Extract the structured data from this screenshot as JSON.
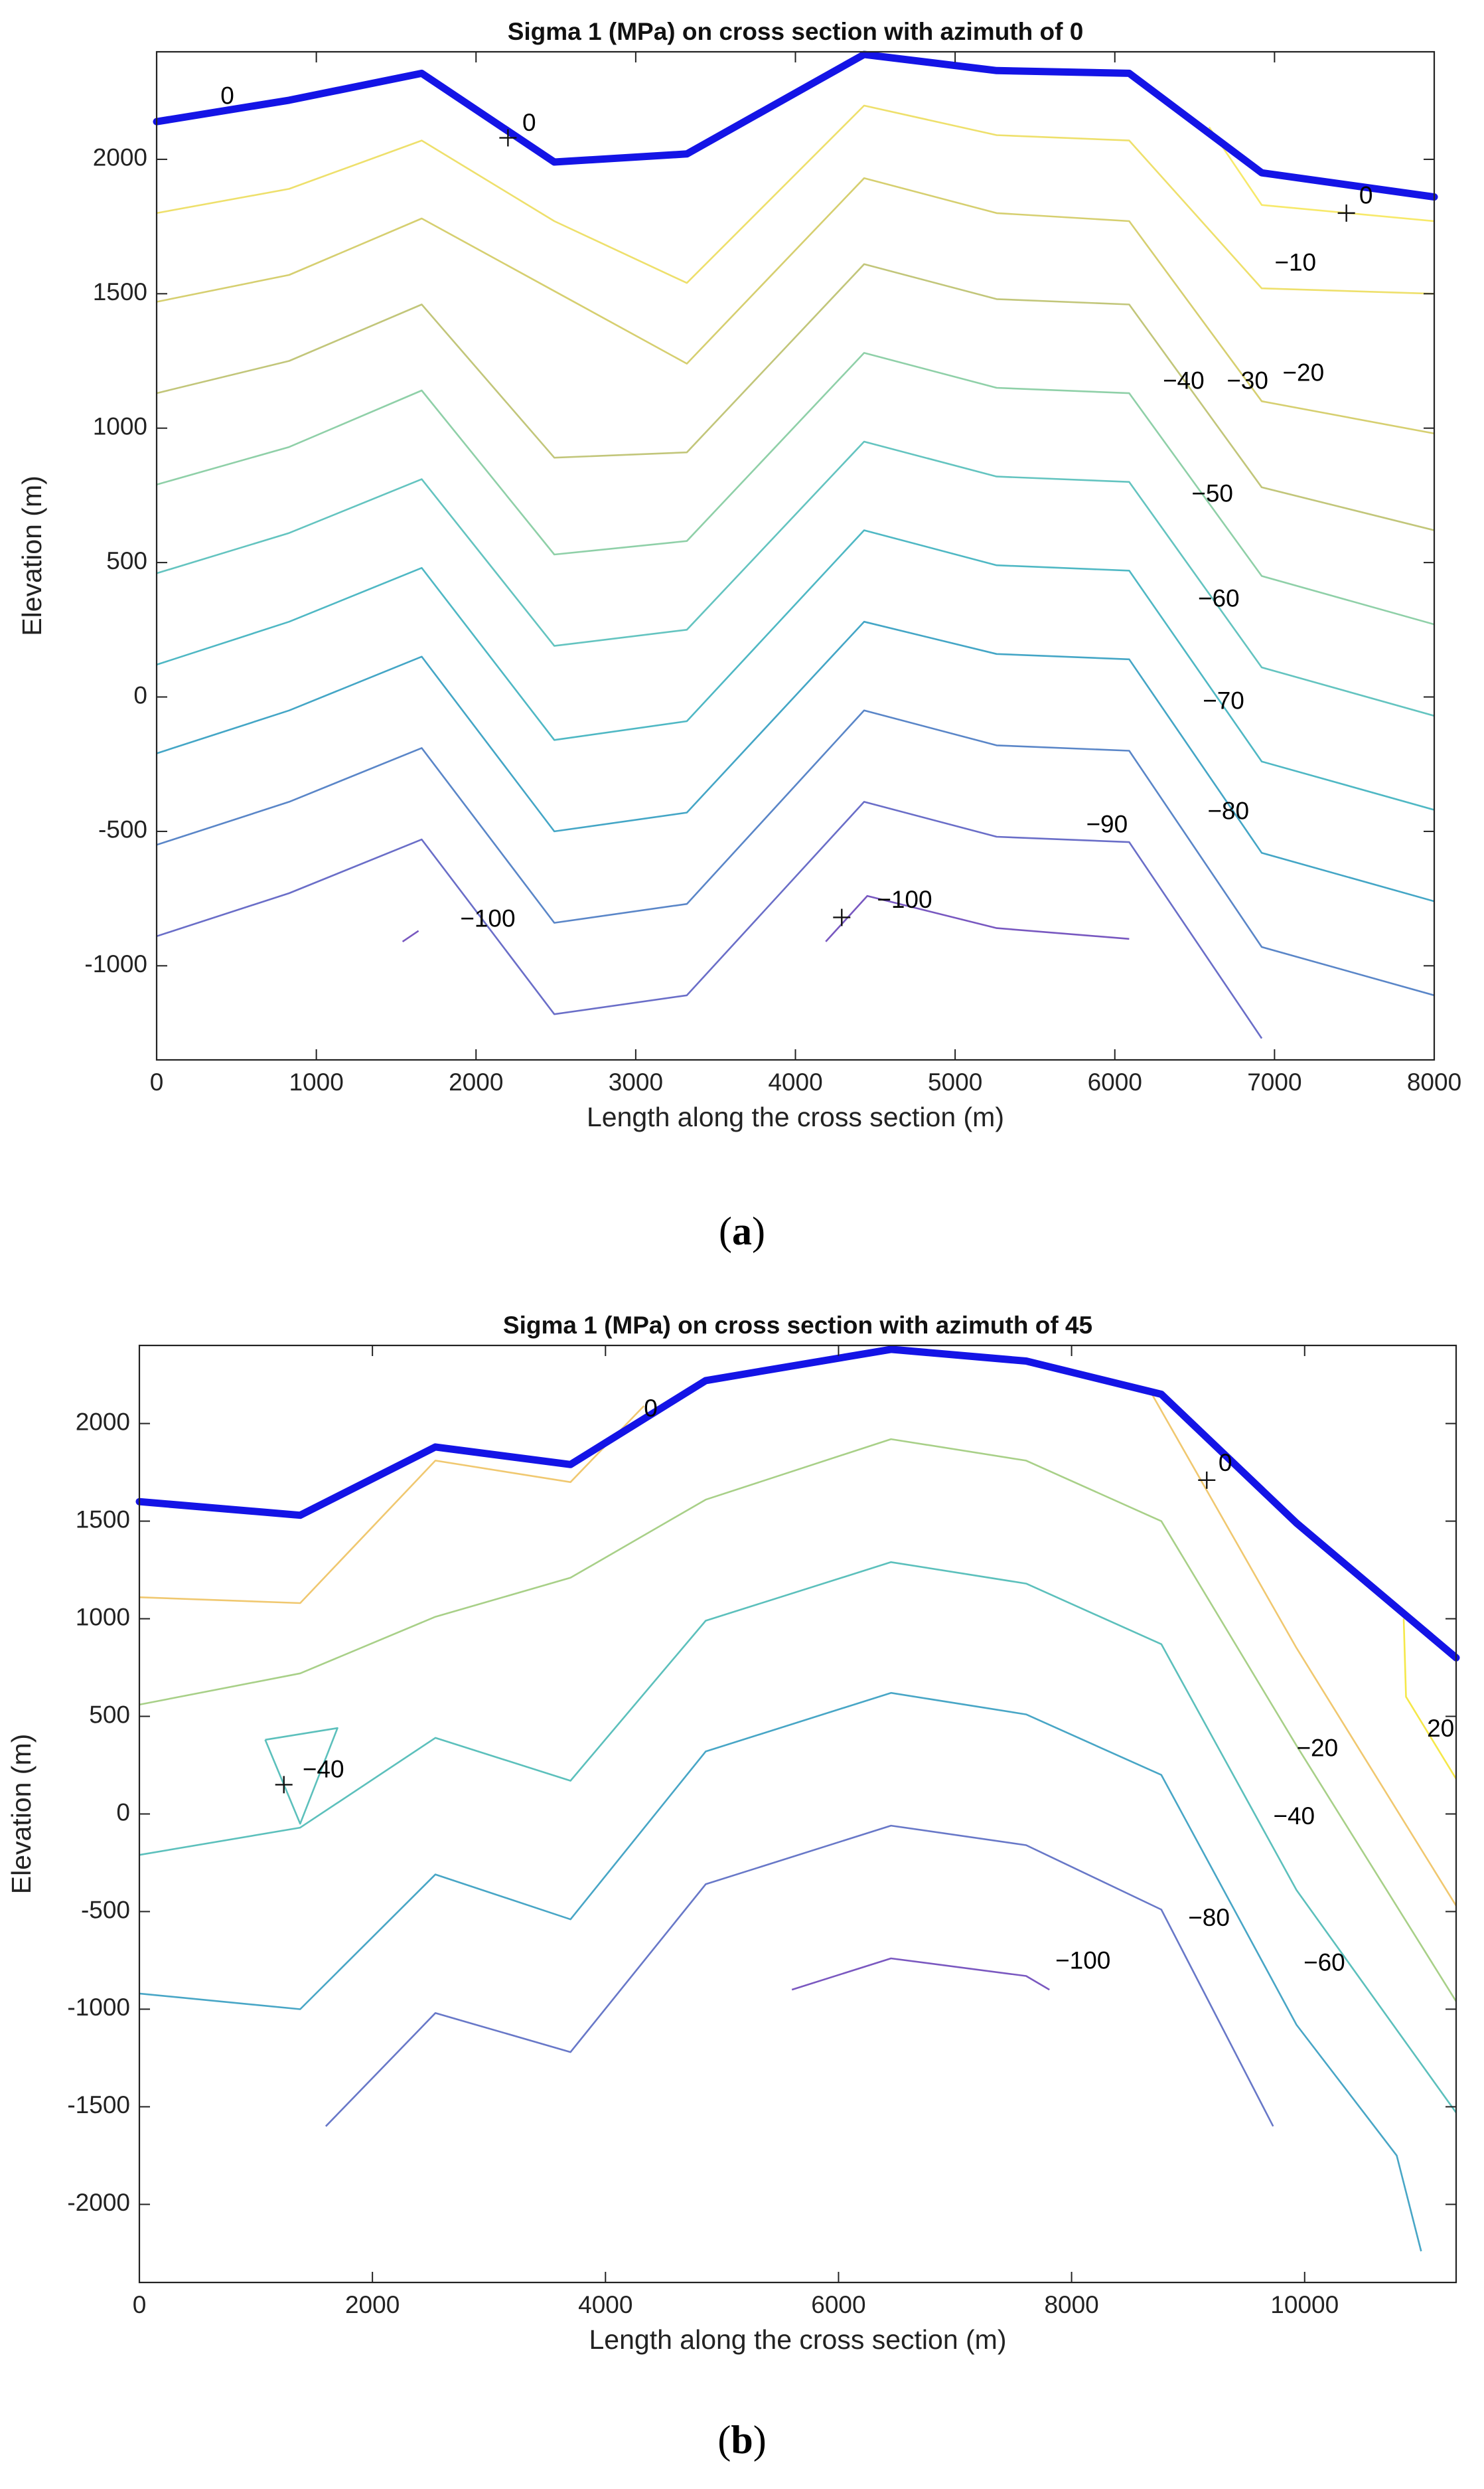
{
  "chart_data": [
    {
      "type": "contour",
      "panel_label": "a",
      "title": "Sigma 1 (MPa) on cross section with azimuth of 0",
      "xlabel": "Length along the cross section (m)",
      "ylabel": "Elevation (m)",
      "xlim": [
        0,
        8000
      ],
      "ylim": [
        -1350,
        2400
      ],
      "xticks": [
        0,
        1000,
        2000,
        3000,
        4000,
        5000,
        6000,
        7000,
        8000
      ],
      "yticks": [
        -1000,
        -500,
        0,
        500,
        1000,
        1500,
        2000
      ],
      "surface": {
        "x": [
          0,
          830,
          1660,
          2490,
          3320,
          4430,
          5260,
          6090,
          6920,
          8000
        ],
        "y": [
          2140,
          2220,
          2320,
          1990,
          2020,
          2390,
          2330,
          2320,
          1950,
          1860
        ]
      },
      "contours": [
        {
          "level": 0,
          "color": "#f7e96a",
          "x": [
            6590,
            6920,
            8000
          ],
          "y": [
            2120,
            1830,
            1770
          ]
        },
        {
          "level": -10,
          "color": "#eee06c",
          "x": [
            0,
            830,
            1660,
            2490,
            3320,
            4430,
            5260,
            6090,
            6920,
            8000
          ],
          "y": [
            1800,
            1890,
            2070,
            1770,
            1540,
            2200,
            2090,
            2070,
            1520,
            1500
          ]
        },
        {
          "level": -20,
          "color": "#d6cf70",
          "x": [
            0,
            830,
            1660,
            2490,
            3320,
            4430,
            5260,
            6090,
            6920,
            8000
          ],
          "y": [
            1470,
            1570,
            1780,
            1510,
            1240,
            1930,
            1800,
            1770,
            1100,
            980
          ]
        },
        {
          "level": -30,
          "color": "#c2c67a",
          "x": [
            0,
            830,
            1660,
            2490,
            3320,
            4430,
            5260,
            6090,
            6920,
            8000
          ],
          "y": [
            1130,
            1250,
            1460,
            890,
            910,
            1610,
            1480,
            1460,
            780,
            620
          ]
        },
        {
          "level": -40,
          "color": "#8fd0a8",
          "x": [
            0,
            830,
            1660,
            2490,
            3320,
            4430,
            5260,
            6090,
            6920,
            8000
          ],
          "y": [
            790,
            930,
            1140,
            530,
            580,
            1280,
            1150,
            1130,
            450,
            270
          ]
        },
        {
          "level": -50,
          "color": "#64c4c0",
          "x": [
            0,
            830,
            1660,
            2490,
            3320,
            4430,
            5260,
            6090,
            6920,
            8000
          ],
          "y": [
            460,
            610,
            810,
            190,
            250,
            950,
            820,
            800,
            110,
            -70
          ]
        },
        {
          "level": -60,
          "color": "#4fb8c4",
          "x": [
            0,
            830,
            1660,
            2490,
            3320,
            4430,
            5260,
            6090,
            6920,
            8000
          ],
          "y": [
            120,
            280,
            480,
            -160,
            -90,
            620,
            490,
            470,
            -240,
            -420
          ]
        },
        {
          "level": -70,
          "color": "#44a6c6",
          "x": [
            0,
            830,
            1660,
            2490,
            3320,
            4430,
            5260,
            6090,
            6920,
            8000
          ],
          "y": [
            -210,
            -50,
            150,
            -500,
            -430,
            280,
            160,
            140,
            -580,
            -760
          ]
        },
        {
          "level": -80,
          "color": "#5a86c8",
          "x": [
            0,
            830,
            1660,
            2490,
            3320,
            4430,
            5260,
            6090,
            6920,
            8000
          ],
          "y": [
            -550,
            -390,
            -190,
            -840,
            -770,
            -50,
            -180,
            -200,
            -930,
            -1110
          ]
        },
        {
          "level": -90,
          "color": "#6a6ec8",
          "x": [
            0,
            830,
            1660,
            2490,
            3320,
            4430,
            5260,
            6090,
            6920
          ],
          "y": [
            -890,
            -730,
            -530,
            -1180,
            -1110,
            -390,
            -520,
            -540,
            -1270
          ]
        },
        {
          "level": -100,
          "color": "#7858c0",
          "x": [
            1540,
            1640
          ],
          "y": [
            -910,
            -870
          ]
        },
        {
          "level": -100,
          "color": "#7858c0",
          "x": [
            4190,
            4450,
            5260,
            6090
          ],
          "y": [
            -910,
            -740,
            -860,
            -900
          ]
        }
      ],
      "contour_labels": [
        {
          "text": "0",
          "x": 400,
          "y": 2230
        },
        {
          "text": "0",
          "x": 2290,
          "y": 2130
        },
        {
          "text": "0",
          "x": 7530,
          "y": 1860
        },
        {
          "text": "−10",
          "x": 7000,
          "y": 1610
        },
        {
          "text": "−20",
          "x": 7050,
          "y": 1200
        },
        {
          "text": "−30",
          "x": 6700,
          "y": 1170
        },
        {
          "text": "−40",
          "x": 6300,
          "y": 1170
        },
        {
          "text": "−50",
          "x": 6480,
          "y": 750
        },
        {
          "text": "−60",
          "x": 6520,
          "y": 360
        },
        {
          "text": "−70",
          "x": 6550,
          "y": -20
        },
        {
          "text": "−80",
          "x": 6580,
          "y": -430
        },
        {
          "text": "−90",
          "x": 5820,
          "y": -480
        },
        {
          "text": "−100",
          "x": 1900,
          "y": -830
        },
        {
          "text": "−100",
          "x": 4510,
          "y": -760
        }
      ],
      "markers": [
        {
          "x": 2200,
          "y": 2080
        },
        {
          "x": 7450,
          "y": 1800
        },
        {
          "x": 4290,
          "y": -820
        }
      ]
    },
    {
      "type": "contour",
      "panel_label": "b",
      "title": "Sigma 1 (MPa) on cross section with azimuth of 45",
      "xlabel": "Length along the cross section (m)",
      "ylabel": "Elevation (m)",
      "xlim": [
        0,
        11300
      ],
      "ylim": [
        -2400,
        2400
      ],
      "xticks": [
        0,
        2000,
        4000,
        6000,
        8000,
        10000
      ],
      "yticks": [
        -2000,
        -1500,
        -1000,
        -500,
        0,
        500,
        1000,
        1500,
        2000
      ],
      "surface": {
        "x": [
          0,
          1380,
          2540,
          3700,
          4860,
          6450,
          7610,
          8770,
          9930,
          11300
        ],
        "y": [
          1600,
          1530,
          1880,
          1790,
          2220,
          2380,
          2320,
          2150,
          1490,
          800
        ]
      },
      "contours": [
        {
          "level": 0,
          "color": "#f0c870",
          "x": [
            0,
            1380,
            2540,
            3700,
            4330
          ],
          "y": [
            1110,
            1080,
            1810,
            1700,
            2090
          ]
        },
        {
          "level": 0,
          "color": "#f0c870",
          "x": [
            8690,
            9930,
            11300
          ],
          "y": [
            2150,
            850,
            -470
          ]
        },
        {
          "level": 20,
          "color": "#f5e84a",
          "x": [
            10850,
            10870,
            11300
          ],
          "y": [
            1000,
            600,
            180
          ]
        },
        {
          "level": -20,
          "color": "#a8d088",
          "x": [
            0,
            1380,
            2540,
            3700,
            4860,
            6450,
            7610,
            8770,
            9930,
            11300
          ],
          "y": [
            560,
            720,
            1010,
            1210,
            1610,
            1920,
            1810,
            1500,
            350,
            -960
          ]
        },
        {
          "level": -40,
          "color": "#5cc0bc",
          "x": [
            0,
            1380,
            2540,
            3700,
            4860,
            6450,
            7610,
            8770,
            9930,
            11300
          ],
          "y": [
            -210,
            -70,
            390,
            170,
            990,
            1290,
            1180,
            870,
            -390,
            -1530
          ]
        },
        {
          "level": -40,
          "color": "#5cc0bc",
          "x": [
            1080,
            1700,
            1380,
            1080
          ],
          "y": [
            380,
            440,
            -50,
            380
          ]
        },
        {
          "level": -60,
          "color": "#48a6c6",
          "x": [
            0,
            1380,
            2540,
            3700,
            4860,
            6450,
            7610,
            8770,
            9930,
            10790,
            11000
          ],
          "y": [
            -920,
            -1000,
            -310,
            -540,
            320,
            620,
            510,
            200,
            -1080,
            -1750,
            -2240
          ]
        },
        {
          "level": -80,
          "color": "#6878c8",
          "x": [
            1600,
            2540,
            3700,
            4860,
            6450,
            7610,
            8770,
            9730
          ],
          "y": [
            -1600,
            -1020,
            -1220,
            -360,
            -60,
            -160,
            -490,
            -1600
          ]
        },
        {
          "level": -100,
          "color": "#7a58c0",
          "x": [
            5600,
            6450,
            7610,
            7810
          ],
          "y": [
            -900,
            -740,
            -830,
            -900
          ]
        }
      ],
      "contour_labels": [
        {
          "text": "0",
          "x": 4330,
          "y": 2070
        },
        {
          "text": "0",
          "x": 9260,
          "y": 1790
        },
        {
          "text": "20",
          "x": 11050,
          "y": 430
        },
        {
          "text": "−20",
          "x": 9930,
          "y": 330
        },
        {
          "text": "−40",
          "x": 1400,
          "y": 220
        },
        {
          "text": "−40",
          "x": 9730,
          "y": -20
        },
        {
          "text": "−60",
          "x": 9990,
          "y": -770
        },
        {
          "text": "−80",
          "x": 9000,
          "y": -540
        },
        {
          "text": "−100",
          "x": 7860,
          "y": -760
        }
      ],
      "markers": [
        {
          "x": 1240,
          "y": 150
        },
        {
          "x": 9160,
          "y": 1710
        }
      ]
    }
  ],
  "captions": [
    {
      "open": "(",
      "letter": "a",
      "close": ")"
    },
    {
      "open": "(",
      "letter": "b",
      "close": ")"
    }
  ]
}
